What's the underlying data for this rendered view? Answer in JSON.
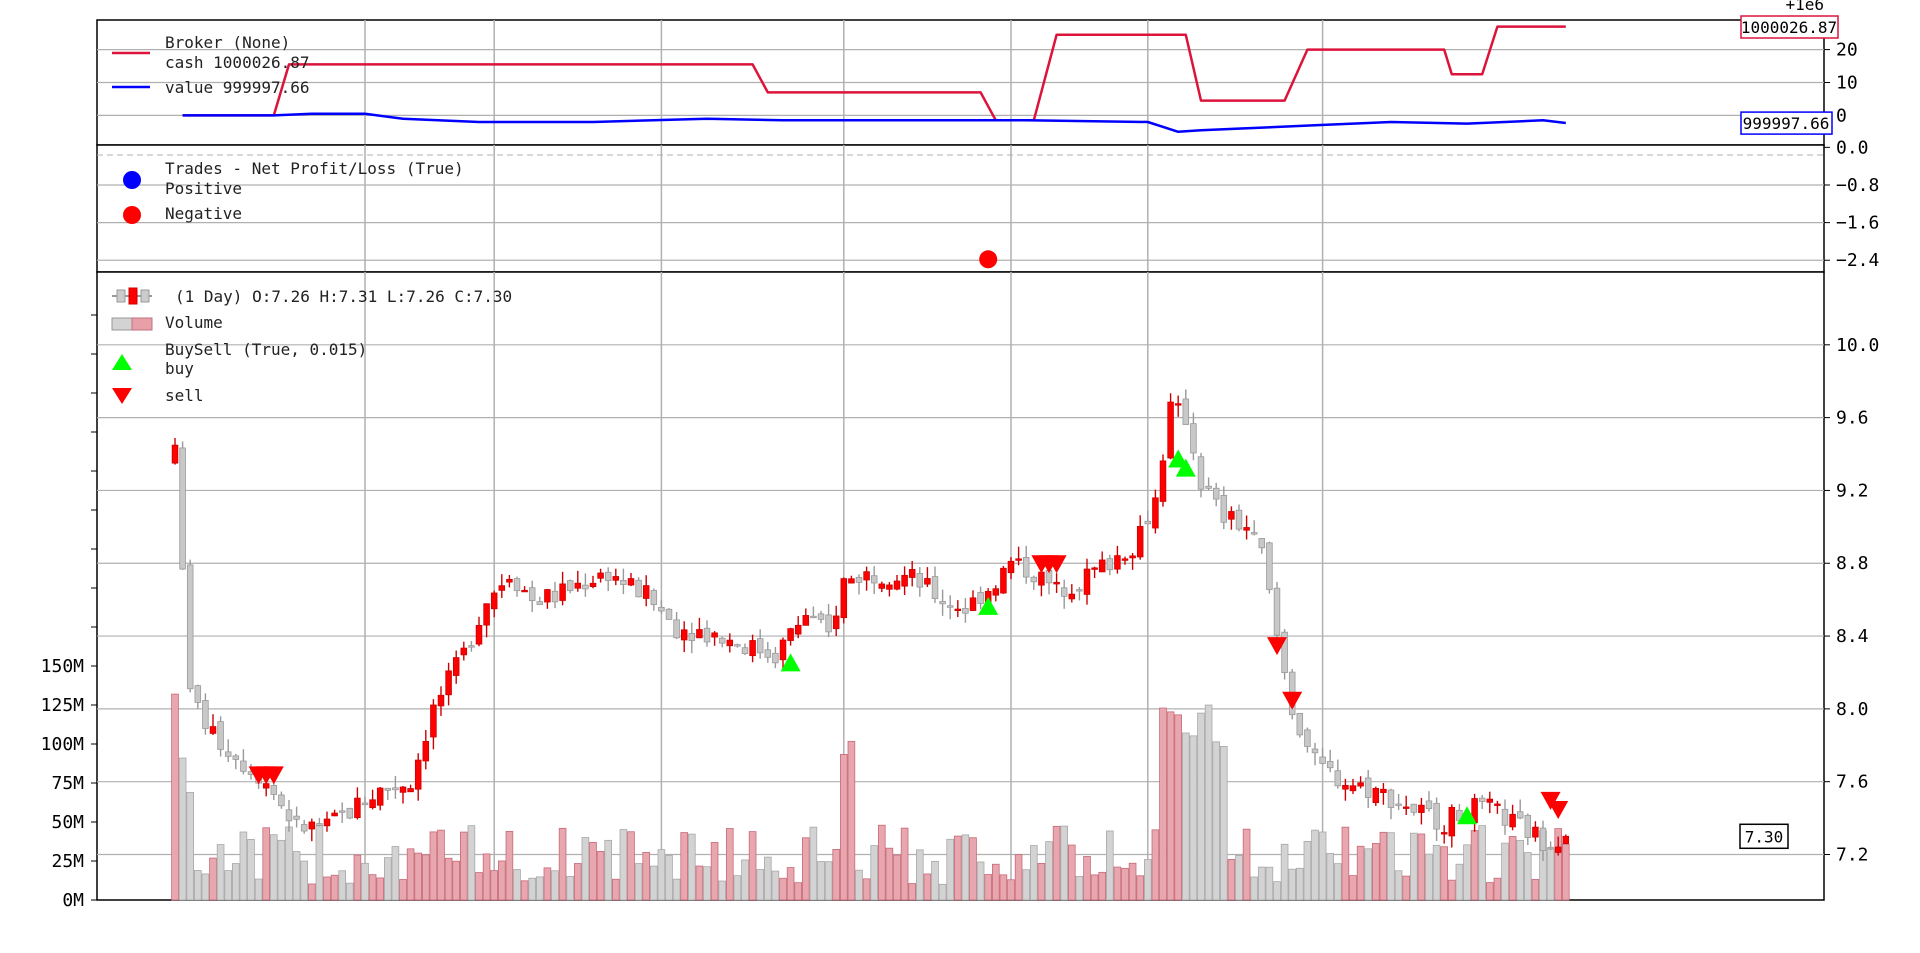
{
  "chart_data": [
    {
      "panel": "broker",
      "type": "line",
      "offset_label": "+1e6",
      "y_ticks": [
        "20",
        "10",
        "0"
      ],
      "y_tick_values": [
        20,
        10,
        0
      ],
      "ylim": [
        -9,
        29
      ],
      "legend": [
        {
          "label": "Broker (None)",
          "color": null
        },
        {
          "label": "cash 1000026.87",
          "color": "#dc143c"
        },
        {
          "label": "value 999997.66",
          "color": "#0000ff"
        }
      ],
      "series": [
        {
          "name": "cash",
          "color": "#dc143c",
          "last_value_label": "1000026.87",
          "last_value": 26.87,
          "points": [
            [
              1,
              0
            ],
            [
              13,
              0
            ],
            [
              15,
              15.5
            ],
            [
              76,
              15.5
            ],
            [
              78,
              7
            ],
            [
              106,
              7
            ],
            [
              108,
              -1.5
            ],
            [
              113,
              -1.5
            ],
            [
              116,
              24.5
            ],
            [
              133,
              24.5
            ],
            [
              135,
              4.5
            ],
            [
              146,
              4.5
            ],
            [
              149,
              20
            ],
            [
              167,
              20
            ],
            [
              168,
              12.5
            ],
            [
              172,
              12.5
            ],
            [
              174,
              27
            ],
            [
              183,
              27
            ]
          ]
        },
        {
          "name": "value",
          "color": "#0000ff",
          "last_value_label": "999997.66",
          "last_value": -2.34,
          "points": [
            [
              1,
              0
            ],
            [
              13,
              0
            ],
            [
              18,
              0.5
            ],
            [
              25,
              0.5
            ],
            [
              30,
              -1
            ],
            [
              40,
              -2
            ],
            [
              55,
              -2
            ],
            [
              70,
              -1
            ],
            [
              80,
              -1.5
            ],
            [
              106,
              -1.5
            ],
            [
              112,
              -1.5
            ],
            [
              128,
              -2
            ],
            [
              132,
              -5
            ],
            [
              135,
              -4.5
            ],
            [
              150,
              -3
            ],
            [
              160,
              -2
            ],
            [
              170,
              -2.5
            ],
            [
              180,
              -1.5
            ],
            [
              183,
              -2.3
            ]
          ]
        }
      ]
    },
    {
      "panel": "trades",
      "type": "scatter",
      "y_ticks": [
        "0.0",
        "−0.8",
        "−1.6",
        "−2.4"
      ],
      "y_tick_values": [
        0.0,
        -0.8,
        -1.6,
        -2.4
      ],
      "ylim": [
        -2.65,
        0.05
      ],
      "legend_title": "Trades - Net Profit/Loss (True)",
      "legend": [
        {
          "label": "Positive",
          "color": "#0000ff"
        },
        {
          "label": "Negative",
          "color": "#ff0000"
        }
      ],
      "points": [
        {
          "x": 107,
          "y": -2.38,
          "series": "Negative"
        }
      ]
    },
    {
      "panel": "price",
      "type": "candlestick",
      "info_label": "(1 Day) O:7.26 H:7.31 L:7.26 C:7.30",
      "last_close_label": "7.30",
      "last_close": 7.3,
      "price_ticks": [
        "10.0",
        "9.6",
        "9.2",
        "8.8",
        "8.4",
        "8.0",
        "7.6",
        "7.2"
      ],
      "price_tick_values": [
        10.0,
        9.6,
        9.2,
        8.8,
        8.4,
        8.0,
        7.6,
        7.2
      ],
      "price_lim": [
        6.95,
        10.4
      ],
      "volume_ticks": [
        "150M",
        "125M",
        "100M",
        "75M",
        "50M",
        "25M",
        "0M"
      ],
      "volume_tick_values": [
        150,
        125,
        100,
        75,
        50,
        25,
        0
      ],
      "volume_unit": "M",
      "volume_lim": [
        0,
        150
      ],
      "legend": [
        {
          "label": "Volume"
        },
        {
          "label": "BuySell (True, 0.015)"
        },
        {
          "label": "buy",
          "color": "#00ff00"
        },
        {
          "label": "sell",
          "color": "#ff0000"
        }
      ],
      "x_gridlines": [
        25,
        42,
        64,
        88,
        110,
        128,
        151
      ],
      "buy_signals": [
        {
          "x": 81,
          "y": 8.25
        },
        {
          "x": 107,
          "y": 8.56
        },
        {
          "x": 132,
          "y": 9.37
        },
        {
          "x": 133,
          "y": 9.32
        },
        {
          "x": 170,
          "y": 7.41
        }
      ],
      "sell_signals": [
        {
          "x": 11,
          "y": 7.64
        },
        {
          "x": 12,
          "y": 7.64
        },
        {
          "x": 13,
          "y": 7.64
        },
        {
          "x": 114,
          "y": 8.8
        },
        {
          "x": 115,
          "y": 8.8
        },
        {
          "x": 116,
          "y": 8.8
        },
        {
          "x": 145,
          "y": 8.35
        },
        {
          "x": 147,
          "y": 8.05
        },
        {
          "x": 181,
          "y": 7.5
        },
        {
          "x": 182,
          "y": 7.45
        }
      ]
    }
  ]
}
